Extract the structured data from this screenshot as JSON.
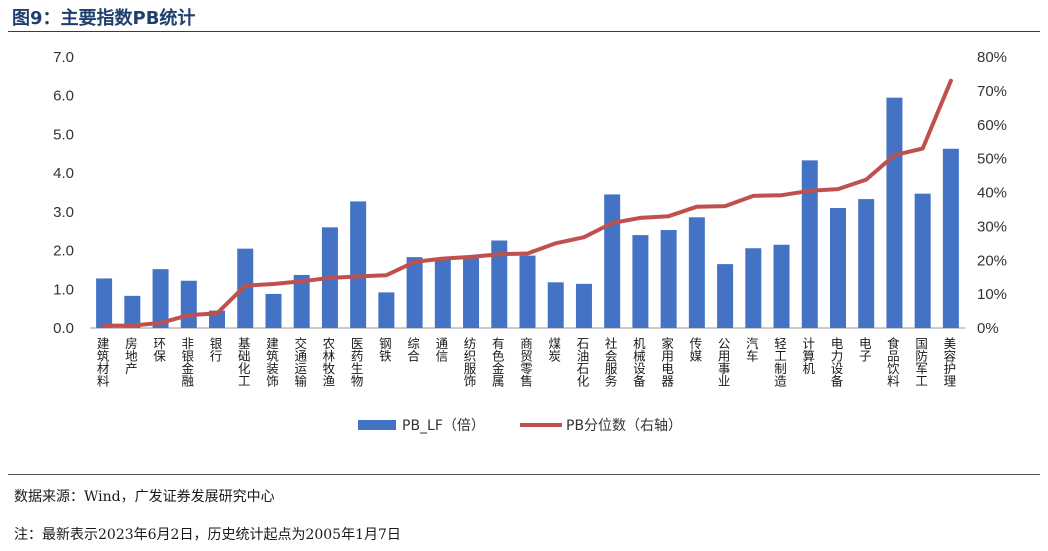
{
  "header": {
    "title": "图9：主要指数PB统计"
  },
  "footer": {
    "source": "数据来源：Wind，广发证券发展研究中心",
    "note": "注：最新表示2023年6月2日，历史统计起点为2005年1月7日"
  },
  "colors": {
    "bar": "#4472c4",
    "line": "#c0504d"
  },
  "chart_data": {
    "type": "bar",
    "title": "",
    "xlabel": "",
    "ylabel": "",
    "categories": [
      "建筑材料",
      "房地产",
      "环保",
      "非银金融",
      "银行",
      "基础化工",
      "建筑装饰",
      "交通运输",
      "农林牧渔",
      "医药生物",
      "钢铁",
      "综合",
      "通信",
      "纺织服饰",
      "有色金属",
      "商贸零售",
      "煤炭",
      "石油石化",
      "社会服务",
      "机械设备",
      "家用电器",
      "传媒",
      "公用事业",
      "汽车",
      "轻工制造",
      "计算机",
      "电力设备",
      "电子",
      "食品饮料",
      "国防军工",
      "美容护理"
    ],
    "series": [
      {
        "name": "PB_LF（倍）",
        "type": "bar",
        "axis": "left",
        "values": [
          1.28,
          0.83,
          1.52,
          1.22,
          0.45,
          2.05,
          0.88,
          1.37,
          2.6,
          3.27,
          0.92,
          1.83,
          1.8,
          1.85,
          2.26,
          1.87,
          1.18,
          1.14,
          3.45,
          2.4,
          2.53,
          2.86,
          1.65,
          2.06,
          2.15,
          4.33,
          3.1,
          3.33,
          5.95,
          3.47,
          4.63
        ]
      },
      {
        "name": "PB分位数（右轴）",
        "type": "line",
        "axis": "right",
        "unit": "%",
        "values": [
          0.7,
          0.7,
          1.5,
          3.8,
          4.3,
          12.5,
          13.0,
          13.8,
          14.8,
          15.2,
          15.6,
          19.5,
          20.5,
          21.0,
          21.8,
          22.0,
          25.0,
          26.8,
          31.0,
          32.5,
          33.0,
          35.8,
          36.0,
          39.0,
          39.2,
          40.5,
          41.0,
          43.8,
          51.0,
          53.0,
          73.0
        ]
      }
    ],
    "y_left": {
      "lim": [
        0,
        7
      ],
      "ticks": [
        "0.0",
        "1.0",
        "2.0",
        "3.0",
        "4.0",
        "5.0",
        "6.0",
        "7.0"
      ]
    },
    "y_right": {
      "lim": [
        0,
        80
      ],
      "ticks": [
        "0%",
        "10%",
        "20%",
        "30%",
        "40%",
        "50%",
        "60%",
        "70%",
        "80%"
      ]
    },
    "grid": false,
    "legend_position": "bottom-center"
  }
}
